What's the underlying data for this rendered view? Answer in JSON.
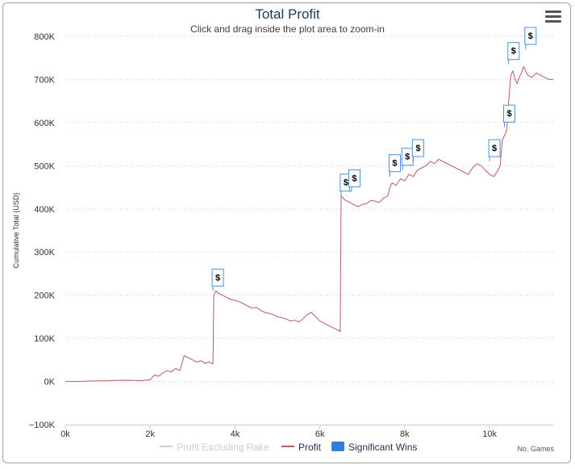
{
  "header": {
    "title": "Total Profit",
    "subtitle": "Click and drag inside the plot area to zoom-in",
    "menu_icon": "hamburger-menu-icon"
  },
  "colors": {
    "profit": "#b85c5c",
    "profit_excluding_rake": "#cccccc",
    "significant_wins": "#2f7ed8",
    "flag_border": "#4a90d9",
    "grid": "#c8c8c8",
    "title": "#1f3a60"
  },
  "chart_data": {
    "type": "line",
    "title": "Total Profit",
    "subtitle": "Click and drag inside the plot area to zoom-in",
    "xlabel": "No. Games",
    "ylabel": "Cumulative Total (USD)",
    "xlim": [
      0,
      11500
    ],
    "ylim": [
      -100000,
      800000
    ],
    "x_ticks": [
      0,
      2000,
      4000,
      6000,
      8000,
      10000
    ],
    "x_tick_labels": [
      "0k",
      "2k",
      "4k",
      "6k",
      "8k",
      "10k"
    ],
    "y_ticks": [
      -100000,
      0,
      100000,
      200000,
      300000,
      400000,
      500000,
      600000,
      700000,
      800000
    ],
    "y_tick_labels": [
      "−100K",
      "0K",
      "100K",
      "200K",
      "300K",
      "400K",
      "500K",
      "600K",
      "700K",
      "800K"
    ],
    "grid": true,
    "legend_position": "bottom-center",
    "legend": [
      {
        "name": "Profit Excluding Rake",
        "symbol": "line",
        "visible": false
      },
      {
        "name": "Profit",
        "symbol": "line",
        "visible": true
      },
      {
        "name": "Significant Wins",
        "symbol": "flag",
        "visible": true
      }
    ],
    "series": [
      {
        "name": "Profit",
        "x": [
          0,
          300,
          600,
          900,
          1200,
          1500,
          1800,
          2000,
          2100,
          2200,
          2300,
          2400,
          2500,
          2600,
          2700,
          2800,
          2900,
          3000,
          3100,
          3200,
          3300,
          3400,
          3450,
          3480,
          3500,
          3550,
          3600,
          3700,
          3800,
          3900,
          4000,
          4100,
          4200,
          4300,
          4400,
          4500,
          4600,
          4700,
          4800,
          4900,
          5000,
          5100,
          5200,
          5300,
          5400,
          5500,
          5600,
          5700,
          5800,
          5900,
          6000,
          6100,
          6200,
          6300,
          6400,
          6450,
          6480,
          6500,
          6550,
          6600,
          6700,
          6800,
          6900,
          7000,
          7100,
          7200,
          7300,
          7400,
          7500,
          7600,
          7650,
          7700,
          7800,
          7900,
          8000,
          8100,
          8200,
          8300,
          8400,
          8500,
          8600,
          8700,
          8800,
          8900,
          9000,
          9100,
          9200,
          9300,
          9400,
          9500,
          9600,
          9700,
          9800,
          9900,
          10000,
          10100,
          10200,
          10250,
          10300,
          10350,
          10400,
          10450,
          10500,
          10550,
          10600,
          10650,
          10700,
          10750,
          10800,
          10850,
          10900,
          11000,
          11100,
          11200,
          11300,
          11400,
          11500
        ],
        "values": [
          0,
          0,
          1000,
          1500,
          2500,
          3000,
          2000,
          4000,
          15000,
          12000,
          20000,
          25000,
          22000,
          30000,
          25000,
          60000,
          55000,
          50000,
          45000,
          48000,
          42000,
          45000,
          42000,
          40000,
          200000,
          210000,
          205000,
          200000,
          195000,
          190000,
          188000,
          185000,
          180000,
          175000,
          170000,
          172000,
          165000,
          160000,
          158000,
          155000,
          150000,
          148000,
          145000,
          140000,
          142000,
          138000,
          145000,
          155000,
          160000,
          150000,
          140000,
          135000,
          130000,
          125000,
          120000,
          118000,
          115000,
          430000,
          425000,
          420000,
          415000,
          410000,
          405000,
          410000,
          412000,
          420000,
          418000,
          415000,
          425000,
          430000,
          450000,
          460000,
          455000,
          470000,
          465000,
          480000,
          475000,
          490000,
          495000,
          500000,
          510000,
          505000,
          515000,
          510000,
          505000,
          500000,
          495000,
          490000,
          485000,
          480000,
          495000,
          505000,
          500000,
          490000,
          480000,
          475000,
          490000,
          500000,
          560000,
          570000,
          580000,
          650000,
          710000,
          720000,
          700000,
          690000,
          705000,
          715000,
          730000,
          720000,
          710000,
          705000,
          715000,
          710000,
          705000,
          700000,
          700000
        ]
      }
    ],
    "flags": [
      {
        "x": 3480,
        "y": 210000,
        "label": "$"
      },
      {
        "x": 6500,
        "y": 430000,
        "label": "$"
      },
      {
        "x": 6700,
        "y": 440000,
        "label": "$"
      },
      {
        "x": 7650,
        "y": 475000,
        "label": "$"
      },
      {
        "x": 7950,
        "y": 490000,
        "label": "$"
      },
      {
        "x": 8200,
        "y": 510000,
        "label": "$"
      },
      {
        "x": 10000,
        "y": 510000,
        "label": "$"
      },
      {
        "x": 10350,
        "y": 590000,
        "label": "$"
      },
      {
        "x": 10450,
        "y": 735000,
        "label": "$"
      },
      {
        "x": 10850,
        "y": 770000,
        "label": "$"
      }
    ]
  }
}
